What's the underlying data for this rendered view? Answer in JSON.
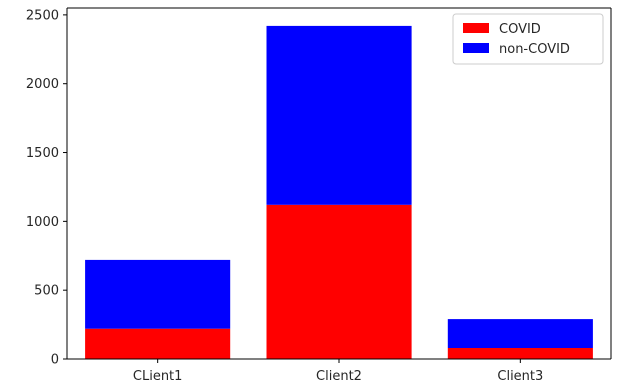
{
  "chart_data": {
    "type": "bar",
    "stacked": true,
    "categories": [
      "CLient1",
      "Client2",
      "Client3"
    ],
    "series": [
      {
        "name": "COVID",
        "values": [
          220,
          1120,
          80
        ],
        "color": "#ff0000"
      },
      {
        "name": "non-COVID",
        "values": [
          500,
          1300,
          210
        ],
        "color": "#0000ff"
      }
    ],
    "yticks": [
      "0",
      "500",
      "1000",
      "1500",
      "2000",
      "2500"
    ],
    "ylim": [
      0,
      2550
    ],
    "title": "",
    "xlabel": "",
    "ylabel": "",
    "legend_position": "top-right",
    "grid": false
  }
}
